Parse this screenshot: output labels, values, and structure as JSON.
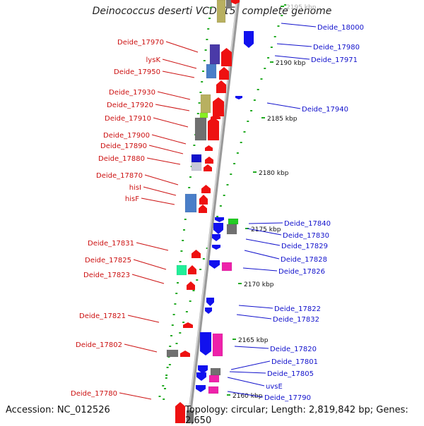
{
  "title": "Deinococcus deserti VCD115, complete genome",
  "accession": "Accession: NC_012526",
  "topology": "Topology: circular; Length: 2,819,842 bp; Genes: 2,650",
  "colors": {
    "forward_gene": "#ee1111",
    "reverse_gene": "#1111ee",
    "left_label": "#cc1111",
    "right_label": "#1111cc",
    "backbone": "#9a9a9a",
    "tick": "#22aa22"
  },
  "ticks": [
    {
      "label": "2195 kbp"
    },
    {
      "label": "2190 kbp"
    },
    {
      "label": "2185 kbp"
    },
    {
      "label": "2180 kbp"
    },
    {
      "label": "2175 kbp"
    },
    {
      "label": "2170 kbp"
    },
    {
      "label": "2165 kbp"
    },
    {
      "label": "2160 kbp"
    }
  ],
  "left_labels": [
    "Deide_17970",
    "lysK",
    "Deide_17950",
    "Deide_17930",
    "Deide_17920",
    "Deide_17910",
    "Deide_17900",
    "Deide_17890",
    "Deide_17880",
    "Deide_17870",
    "hisI",
    "hisF",
    "Deide_17831",
    "Deide_17825",
    "Deide_17823",
    "Deide_17821",
    "Deide_17802",
    "Deide_17780"
  ],
  "right_labels": [
    "Deide_18000",
    "Deide_17980",
    "Deide_17971",
    "Deide_17940",
    "Deide_17840",
    "Deide_17830",
    "Deide_17829",
    "Deide_17828",
    "Deide_17826",
    "Deide_17822",
    "Deide_17832",
    "Deide_17820",
    "Deide_17801",
    "Deide_17805",
    "uvsE",
    "Deide_17790"
  ]
}
